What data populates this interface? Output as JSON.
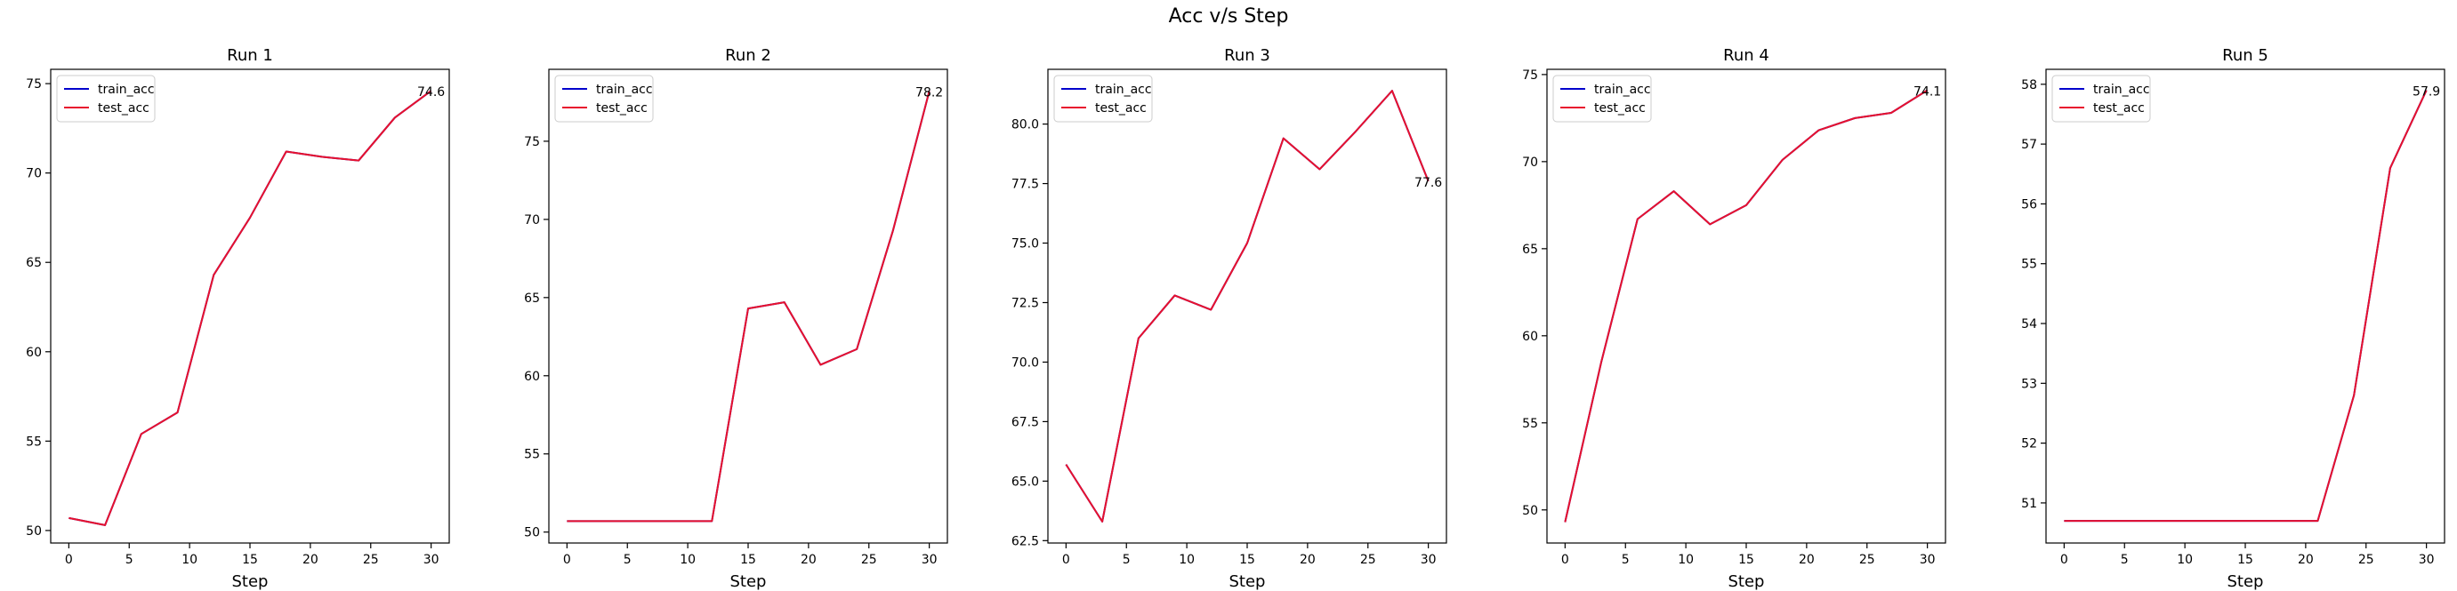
{
  "figure": {
    "suptitle": "Acc v/s Step"
  },
  "chart_data": [
    {
      "type": "line",
      "title": "Run 1",
      "xlabel": "Step",
      "ylabel": "",
      "xlim": [
        -1.5,
        31.5
      ],
      "ylim": [
        49.3,
        75.8
      ],
      "xticks": [
        0,
        5,
        10,
        15,
        20,
        25,
        30
      ],
      "yticks": [
        50,
        55,
        60,
        65,
        70,
        75
      ],
      "grid": false,
      "legend": "upper left",
      "x": [
        0,
        3,
        6,
        9,
        12,
        15,
        18,
        21,
        24,
        27,
        30
      ],
      "series": [
        {
          "name": "train_acc",
          "color": "#0000cc",
          "values": [
            50.7,
            50.3,
            55.4,
            56.6,
            64.3,
            67.5,
            71.2,
            70.9,
            70.7,
            73.1,
            74.6
          ]
        },
        {
          "name": "test_acc",
          "color": "#e8112d",
          "values": [
            50.7,
            50.3,
            55.4,
            56.6,
            64.3,
            67.5,
            71.2,
            70.9,
            70.7,
            73.1,
            74.6
          ]
        }
      ],
      "annotation": "74.6"
    },
    {
      "type": "line",
      "title": "Run 2",
      "xlabel": "Step",
      "ylabel": "",
      "xlim": [
        -1.5,
        31.5
      ],
      "ylim": [
        49.3,
        79.6
      ],
      "xticks": [
        0,
        5,
        10,
        15,
        20,
        25,
        30
      ],
      "yticks": [
        50,
        55,
        60,
        65,
        70,
        75
      ],
      "grid": false,
      "legend": "upper left",
      "x": [
        0,
        3,
        6,
        9,
        12,
        15,
        18,
        21,
        24,
        27,
        30
      ],
      "series": [
        {
          "name": "train_acc",
          "color": "#0000cc",
          "values": [
            50.7,
            50.7,
            50.7,
            50.7,
            50.7,
            64.3,
            64.7,
            60.7,
            61.7,
            69.3,
            78.2
          ]
        },
        {
          "name": "test_acc",
          "color": "#e8112d",
          "values": [
            50.7,
            50.7,
            50.7,
            50.7,
            50.7,
            64.3,
            64.7,
            60.7,
            61.7,
            69.3,
            78.2
          ]
        }
      ],
      "annotation": "78.2"
    },
    {
      "type": "line",
      "title": "Run 3",
      "xlabel": "Step",
      "ylabel": "",
      "xlim": [
        -1.5,
        31.5
      ],
      "ylim": [
        62.4,
        82.3
      ],
      "xticks": [
        0,
        5,
        10,
        15,
        20,
        25,
        30
      ],
      "yticks": [
        62.5,
        65.0,
        67.5,
        70.0,
        72.5,
        75.0,
        77.5,
        80.0
      ],
      "yticklabels": [
        "62.5",
        "65.0",
        "67.5",
        "70.0",
        "72.5",
        "75.0",
        "77.5",
        "80.0"
      ],
      "grid": false,
      "legend": "upper left",
      "x": [
        0,
        3,
        6,
        9,
        12,
        15,
        18,
        21,
        24,
        27,
        30
      ],
      "series": [
        {
          "name": "train_acc",
          "color": "#0000cc",
          "values": [
            65.7,
            63.3,
            71.0,
            72.8,
            72.2,
            75.0,
            79.4,
            78.1,
            79.7,
            81.4,
            77.6
          ]
        },
        {
          "name": "test_acc",
          "color": "#e8112d",
          "values": [
            65.7,
            63.3,
            71.0,
            72.8,
            72.2,
            75.0,
            79.4,
            78.1,
            79.7,
            81.4,
            77.6
          ]
        }
      ],
      "annotation": "77.6"
    },
    {
      "type": "line",
      "title": "Run 4",
      "xlabel": "Step",
      "ylabel": "",
      "xlim": [
        -1.5,
        31.5
      ],
      "ylim": [
        48.1,
        75.3
      ],
      "xticks": [
        0,
        5,
        10,
        15,
        20,
        25,
        30
      ],
      "yticks": [
        50,
        55,
        60,
        65,
        70,
        75
      ],
      "grid": false,
      "legend": "upper left",
      "x": [
        0,
        3,
        6,
        9,
        12,
        15,
        18,
        21,
        24,
        27,
        30
      ],
      "series": [
        {
          "name": "train_acc",
          "color": "#0000cc",
          "values": [
            49.3,
            58.5,
            66.7,
            68.3,
            66.4,
            67.5,
            70.1,
            71.8,
            72.5,
            72.8,
            74.1
          ]
        },
        {
          "name": "test_acc",
          "color": "#e8112d",
          "values": [
            49.3,
            58.5,
            66.7,
            68.3,
            66.4,
            67.5,
            70.1,
            71.8,
            72.5,
            72.8,
            74.1
          ]
        }
      ],
      "annotation": "74.1"
    },
    {
      "type": "line",
      "title": "Run 5",
      "xlabel": "Step",
      "ylabel": "",
      "xlim": [
        -1.5,
        31.5
      ],
      "ylim": [
        50.33,
        58.25
      ],
      "xticks": [
        0,
        5,
        10,
        15,
        20,
        25,
        30
      ],
      "yticks": [
        51,
        52,
        53,
        54,
        55,
        56,
        57,
        58
      ],
      "grid": false,
      "legend": "upper left",
      "x": [
        0,
        3,
        6,
        9,
        12,
        15,
        18,
        21,
        24,
        27,
        30
      ],
      "series": [
        {
          "name": "train_acc",
          "color": "#0000cc",
          "values": [
            50.7,
            50.7,
            50.7,
            50.7,
            50.7,
            50.7,
            50.7,
            50.7,
            52.8,
            56.6,
            57.9
          ]
        },
        {
          "name": "test_acc",
          "color": "#e8112d",
          "values": [
            50.7,
            50.7,
            50.7,
            50.7,
            50.7,
            50.7,
            50.7,
            50.7,
            52.8,
            56.6,
            57.9
          ]
        }
      ],
      "annotation": "57.9"
    }
  ]
}
